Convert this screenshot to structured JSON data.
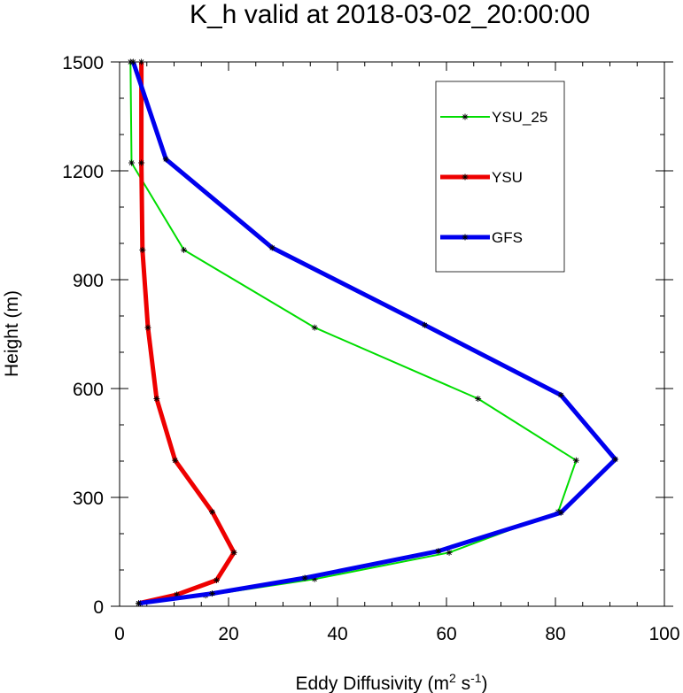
{
  "chart_data": {
    "type": "line",
    "title": "K_h valid at 2018-03-02_20:00:00",
    "xlabel_main": "Eddy Diffusivity (m",
    "xlabel_sup1": "2",
    "xlabel_mid": " s",
    "xlabel_sup2": "-1",
    "xlabel_end": ")",
    "ylabel": "Height (m)",
    "xlim": [
      0,
      100
    ],
    "ylim": [
      0,
      1500
    ],
    "xticks": [
      0,
      20,
      40,
      60,
      80,
      100
    ],
    "yticks": [
      0,
      300,
      600,
      900,
      1200,
      1500
    ],
    "xtick_labels": [
      "0",
      "20",
      "40",
      "60",
      "80",
      "100"
    ],
    "ytick_labels": [
      "0",
      "300",
      "600",
      "900",
      "1200",
      "1500"
    ],
    "grid": false,
    "legend_position": "top-right",
    "series": [
      {
        "name": "YSU_25",
        "color": "#00dd00",
        "points": [
          [
            3.8,
            8
          ],
          [
            15.8,
            30
          ],
          [
            35.8,
            75
          ],
          [
            60.5,
            148
          ],
          [
            80.5,
            260
          ],
          [
            83.8,
            402
          ],
          [
            65.8,
            572
          ],
          [
            35.8,
            768
          ],
          [
            11.8,
            982
          ],
          [
            2.2,
            1222
          ],
          [
            2.0,
            1500
          ]
        ]
      },
      {
        "name": "YSU",
        "color": "#ee0000",
        "points": [
          [
            3.5,
            8
          ],
          [
            10.5,
            32
          ],
          [
            17.8,
            72
          ],
          [
            21.0,
            148
          ],
          [
            17.0,
            260
          ],
          [
            10.2,
            402
          ],
          [
            6.8,
            572
          ],
          [
            5.2,
            768
          ],
          [
            4.2,
            982
          ],
          [
            4.0,
            1222
          ],
          [
            4.0,
            1500
          ]
        ]
      },
      {
        "name": "GFS",
        "color": "#0000ee",
        "points": [
          [
            3.5,
            8
          ],
          [
            17.0,
            35
          ],
          [
            34.0,
            78
          ],
          [
            58.5,
            152
          ],
          [
            81.0,
            258
          ],
          [
            91.0,
            405
          ],
          [
            81.0,
            582
          ],
          [
            56.0,
            775
          ],
          [
            28.0,
            988
          ],
          [
            8.5,
            1232
          ],
          [
            2.5,
            1500
          ]
        ]
      }
    ]
  }
}
